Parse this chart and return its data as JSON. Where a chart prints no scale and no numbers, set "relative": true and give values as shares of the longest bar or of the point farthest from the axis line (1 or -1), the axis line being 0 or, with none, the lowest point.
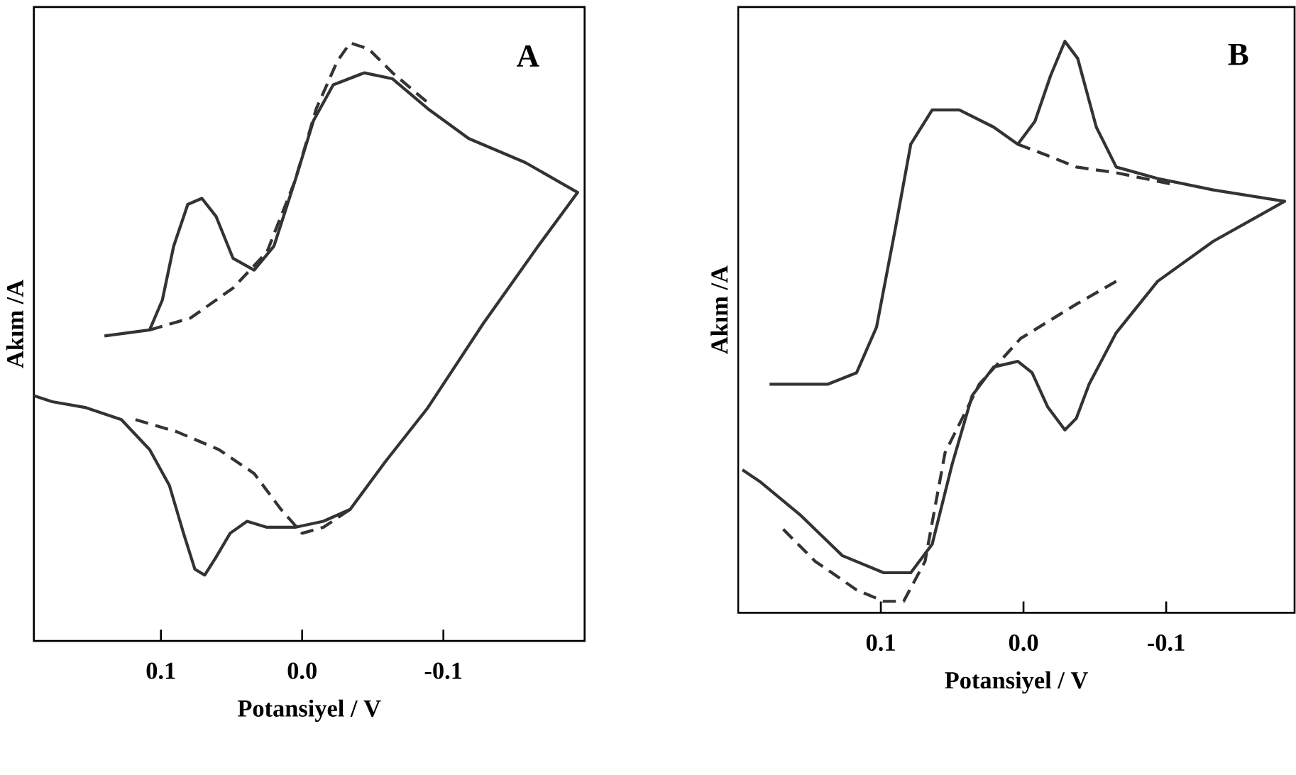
{
  "chart_data": [
    {
      "type": "line",
      "relative": true,
      "xlabel": "Potansiyel / V",
      "ylabel": "Akım /A",
      "annotations": [
        "A"
      ],
      "xlim": [
        0.19,
        -0.2
      ],
      "xticks": [
        {
          "value": 0.1,
          "label": "0.1"
        },
        {
          "value": 0,
          "label": "0.0"
        },
        {
          "value": -0.1,
          "label": "-0.1"
        }
      ],
      "grid": false,
      "marker": "none",
      "series": [
        {
          "color": "#333333",
          "line_style": "solid",
          "x": [
            0.14,
            0.108,
            0.099,
            0.091,
            0.081,
            0.071,
            0.061,
            0.049,
            0.034,
            0.02,
            0.005,
            -0.008,
            -0.022,
            -0.044,
            -0.064,
            -0.089,
            -0.118,
            -0.158,
            -0.195,
            -0.167,
            -0.128,
            -0.089,
            -0.059,
            -0.034,
            -0.015,
            0.005,
            0.025,
            0.039,
            0.051,
            0.061,
            0.069,
            0.076,
            0.084,
            0.094,
            0.108,
            0.128,
            0.153,
            0.177,
            0.19
          ],
          "values": [
            0.51,
            0.52,
            0.57,
            0.66,
            0.73,
            0.74,
            0.71,
            0.64,
            0.62,
            0.66,
            0.77,
            0.87,
            0.93,
            0.95,
            0.94,
            0.89,
            0.84,
            0.8,
            0.75,
            0.66,
            0.53,
            0.39,
            0.3,
            0.22,
            0.2,
            0.19,
            0.19,
            0.2,
            0.18,
            0.14,
            0.11,
            0.12,
            0.18,
            0.26,
            0.32,
            0.37,
            0.39,
            0.4,
            0.41
          ]
        },
        {
          "color": "#333333",
          "line_style": "dashed",
          "x": [
            0.108,
            0.079,
            0.049,
            0.025,
            0.005,
            -0.01,
            -0.025,
            -0.034,
            -0.047,
            -0.064,
            -0.089
          ],
          "values": [
            0.52,
            0.54,
            0.59,
            0.65,
            0.77,
            0.89,
            0.97,
            1.0,
            0.99,
            0.95,
            0.9
          ]
        },
        {
          "color": "#333333",
          "line_style": "dashed",
          "x": [
            0.118,
            0.089,
            0.059,
            0.034,
            0.015,
            0,
            -0.015,
            -0.034
          ],
          "values": [
            0.37,
            0.35,
            0.32,
            0.28,
            0.22,
            0.18,
            0.19,
            0.22
          ]
        }
      ]
    },
    {
      "type": "line",
      "relative": true,
      "xlabel": "Potansiyel / V",
      "ylabel": "Akım /A",
      "annotations": [
        "B"
      ],
      "xlim": [
        0.2,
        -0.19
      ],
      "xticks": [
        {
          "value": 0.1,
          "label": "0.1"
        },
        {
          "value": 0,
          "label": "0.0"
        },
        {
          "value": -0.1,
          "label": "-0.1"
        }
      ],
      "grid": false,
      "marker": "none",
      "series": [
        {
          "color": "#333333",
          "line_style": "solid",
          "x": [
            0.178,
            0.137,
            0.117,
            0.103,
            0.09,
            0.079,
            0.064,
            0.045,
            0.021,
            0.004,
            -0.008,
            -0.019,
            -0.029,
            -0.038,
            -0.051,
            -0.065,
            -0.094,
            -0.133,
            -0.183,
            -0.133,
            -0.094,
            -0.065,
            -0.046,
            -0.037,
            -0.029,
            -0.017,
            -0.006,
            0.004,
            0.021,
            0.036,
            0.05,
            0.064,
            0.079,
            0.098,
            0.127,
            0.156,
            0.185,
            0.197
          ],
          "values": [
            0.4,
            0.4,
            0.42,
            0.5,
            0.67,
            0.82,
            0.88,
            0.88,
            0.85,
            0.82,
            0.86,
            0.94,
            1.0,
            0.97,
            0.85,
            0.78,
            0.76,
            0.74,
            0.72,
            0.65,
            0.58,
            0.49,
            0.4,
            0.34,
            0.32,
            0.36,
            0.42,
            0.44,
            0.43,
            0.38,
            0.26,
            0.12,
            0.07,
            0.07,
            0.1,
            0.17,
            0.23,
            0.25
          ]
        },
        {
          "color": "#333333",
          "line_style": "dashed",
          "x": [
            0.004,
            -0.017,
            -0.037,
            -0.065,
            -0.104
          ],
          "values": [
            0.82,
            0.8,
            0.78,
            0.77,
            0.75
          ]
        },
        {
          "color": "#333333",
          "line_style": "dashed",
          "x": [
            -0.065,
            -0.037,
            0.002,
            0.031,
            0.055,
            0.069,
            0.084,
            0.098,
            0.117,
            0.146,
            0.17
          ],
          "values": [
            0.58,
            0.54,
            0.48,
            0.4,
            0.28,
            0.09,
            0.02,
            0.02,
            0.04,
            0.09,
            0.15
          ]
        }
      ]
    }
  ]
}
